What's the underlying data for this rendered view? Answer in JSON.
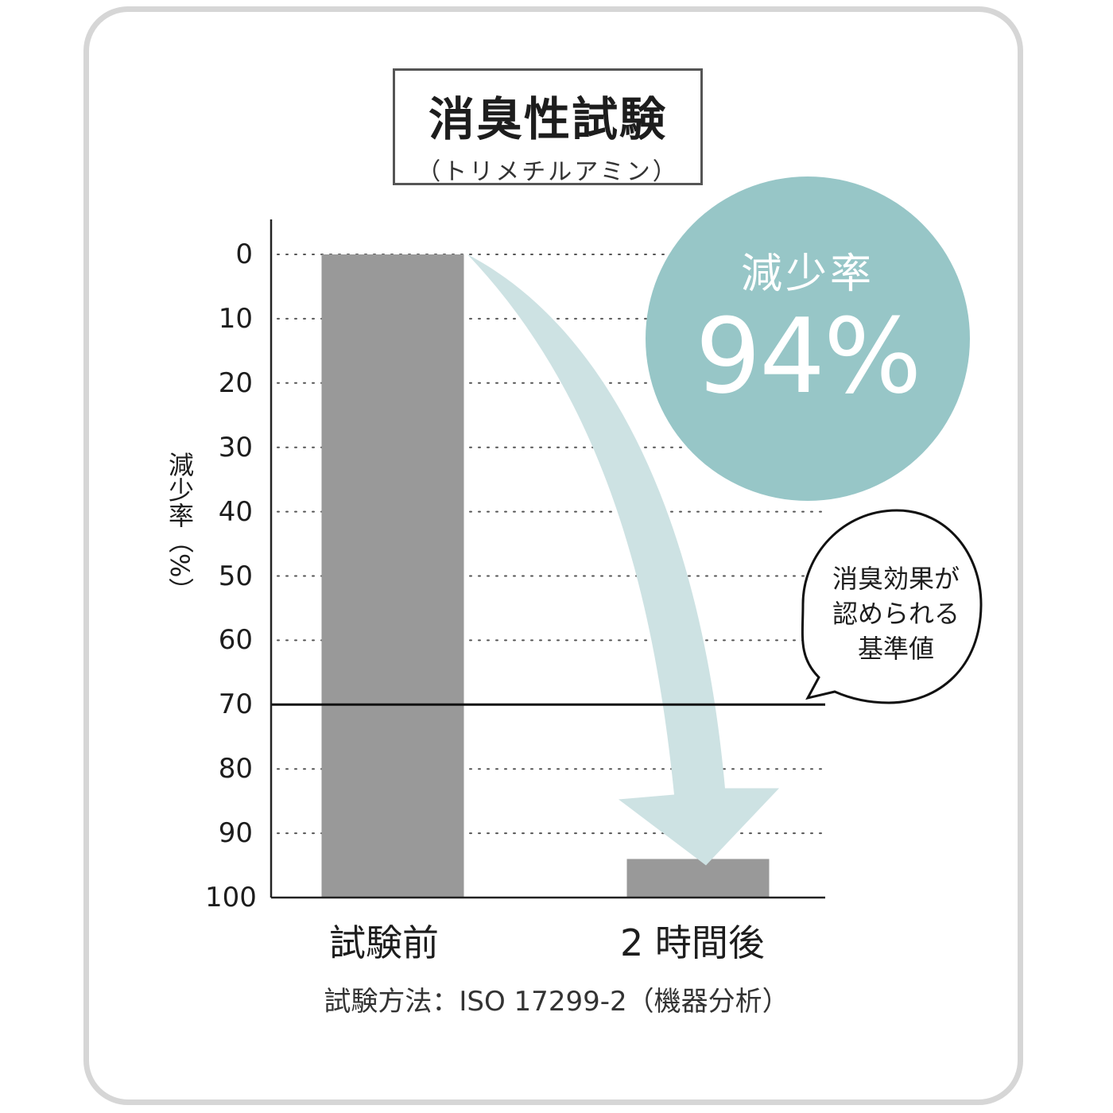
{
  "title": "消臭性試験",
  "subtitle": "（トリメチルアミン）",
  "reduction_label": "減少率",
  "reduction_value": "94%",
  "callout": [
    "消臭効果が",
    "認められる",
    "基準値"
  ],
  "method_note": "試験方法：ISO 17299-2（機器分析）",
  "colors": {
    "bar": "#999999",
    "arrow": "#cde2e3",
    "circle": "#97c6c7",
    "frame": "#d6d6d6"
  },
  "chart_data": {
    "type": "bar",
    "title": "消臭性試験",
    "subtitle": "（トリメチルアミン）",
    "ylabel": "減少率（%）",
    "categories": [
      "試験前",
      "2 時間後"
    ],
    "values": [
      0,
      94
    ],
    "y_ticks": [
      "0",
      "10",
      "20",
      "30",
      "40",
      "50",
      "60",
      "70",
      "80",
      "90",
      "100"
    ],
    "ylim": [
      0,
      100
    ],
    "y_inverted": true,
    "grid": "dotted",
    "reference_line": {
      "value": 70,
      "label": "消臭効果が認められる基準値"
    },
    "annotation": "減少率 94%"
  }
}
